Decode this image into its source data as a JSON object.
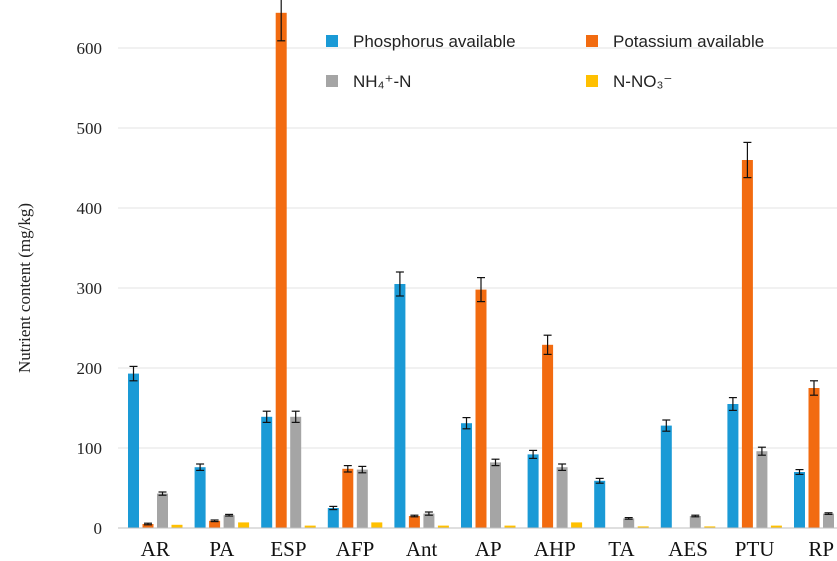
{
  "chart_data": {
    "type": "bar",
    "ylabel": "Nutrient content (mg/kg)",
    "ylim": [
      0,
      650
    ],
    "yticks": [
      0,
      100,
      200,
      300,
      400,
      500,
      600
    ],
    "grid": "horizontal",
    "legend_position": "top-right",
    "categories": [
      "AR",
      "PA",
      "ESP",
      "AFP",
      "Ant",
      "AP",
      "AHP",
      "TA",
      "AES",
      "PTU",
      "RP"
    ],
    "series": [
      {
        "name": "Phosphorus available",
        "color": "#1a9ad6",
        "values": [
          193,
          76,
          139,
          25,
          305,
          131,
          92,
          59,
          128,
          155,
          70
        ],
        "errors": [
          9,
          4,
          7,
          2,
          15,
          7,
          5,
          3,
          7,
          8,
          3
        ]
      },
      {
        "name": "Potassium available",
        "color": "#f26b10",
        "values": [
          5,
          9,
          644,
          74,
          15,
          298,
          229,
          0,
          0,
          460,
          175
        ],
        "errors": [
          1,
          1,
          35,
          4,
          1,
          15,
          12,
          0,
          0,
          22,
          9
        ]
      },
      {
        "name": "NH₄⁺-N",
        "color": "#a5a5a5",
        "values": [
          43,
          16,
          139,
          73,
          18,
          82,
          76,
          12,
          15,
          96,
          18
        ],
        "errors": [
          2,
          1,
          7,
          4,
          2,
          4,
          4,
          1,
          1,
          5,
          1
        ]
      },
      {
        "name": "N-NO₃⁻",
        "color": "#ffc000",
        "values": [
          4,
          7,
          3,
          7,
          3,
          3,
          7,
          2,
          2,
          3,
          4
        ],
        "errors": [
          0,
          0,
          0,
          0,
          0,
          0,
          0,
          0,
          0,
          0,
          0
        ]
      }
    ]
  }
}
